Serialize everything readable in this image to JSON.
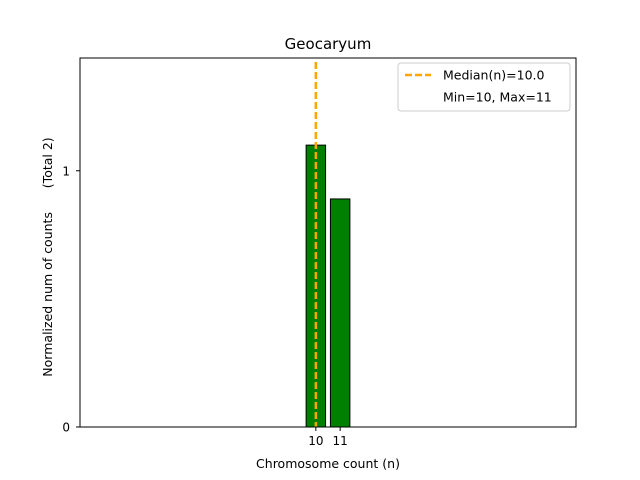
{
  "chart_data": {
    "type": "bar",
    "title": "Geocaryum",
    "xlabel": "Chromosome count (n)",
    "ylabel": "Normalized num of counts      (Total 2)",
    "x": [
      10,
      11
    ],
    "values": [
      1.1,
      0.89
    ],
    "x_tick_labels": [
      "10",
      "11"
    ],
    "y_tick_labels": [
      "0",
      "1"
    ],
    "y_ticks": [
      0,
      1
    ],
    "xlim": [
      0.3,
      20.7
    ],
    "ylim": [
      0,
      1.44
    ],
    "bar_color": "#008000",
    "bar_edge_color": "#000000",
    "median_value": 10.0,
    "median_color": "#FFA500",
    "legend": {
      "placement": "top-right",
      "entries": [
        "Median(n)=10.0",
        "Min=10, Max=11"
      ]
    }
  }
}
